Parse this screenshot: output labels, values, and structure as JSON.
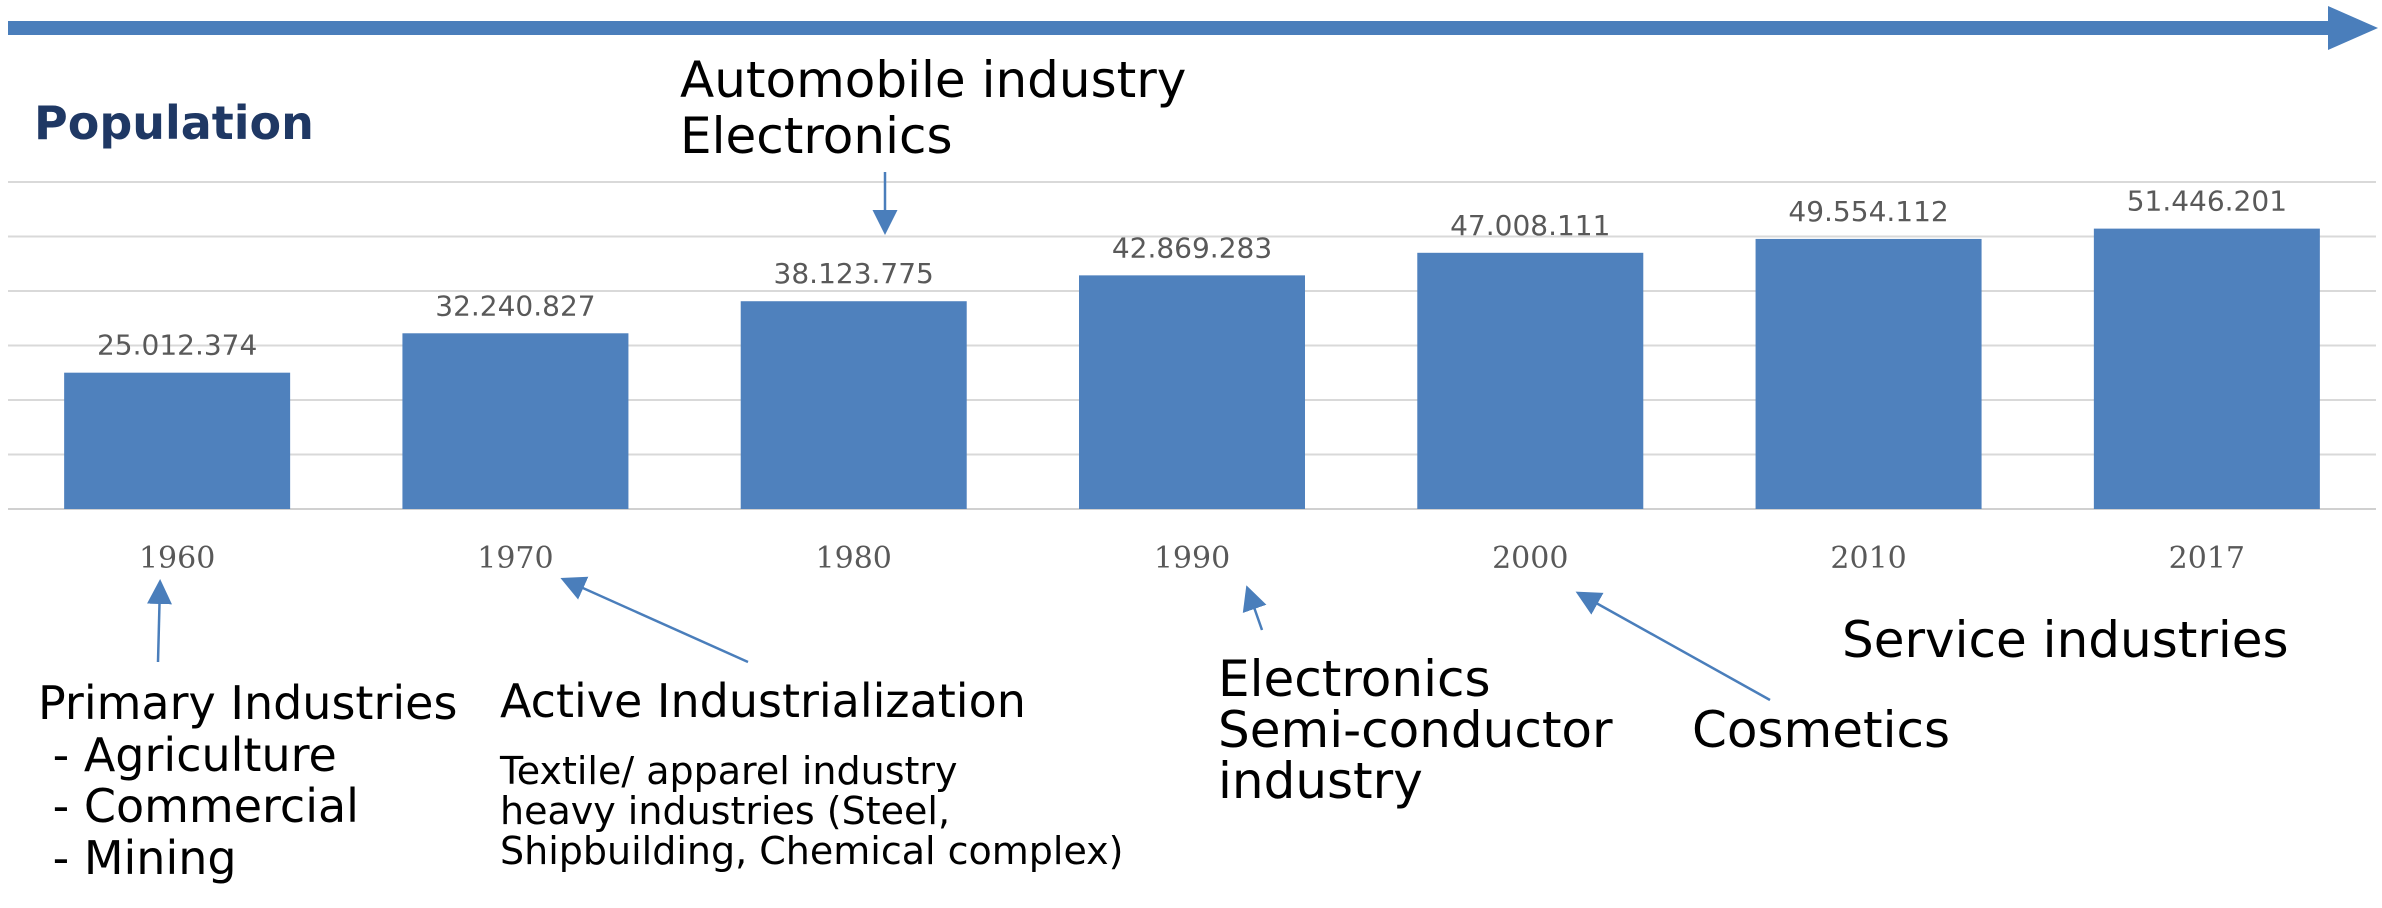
{
  "chart_data": {
    "type": "bar",
    "title": "Population",
    "categories": [
      "1960",
      "1970",
      "1980",
      "1990",
      "2000",
      "2010",
      "2017"
    ],
    "values": [
      25012374,
      32240827,
      38123775,
      42869283,
      47008111,
      49554112,
      51446201
    ],
    "data_labels": [
      "25.012.374",
      "32.240.827",
      "38.123.775",
      "42.869.283",
      "47.008.111",
      "49.554.112",
      "51.446.201"
    ],
    "ylim": [
      0,
      60000000
    ],
    "grid": true,
    "legend": "none",
    "bar_color": "#4f81bd",
    "axis_text_color": "#595959",
    "title_color": "#1f3864",
    "arrow_color": "#4a7ebb"
  },
  "annotations": {
    "automobile": [
      "Automobile industry",
      "Electronics"
    ],
    "primary": {
      "heading": "Primary Industries",
      "items": [
        " - Agriculture",
        " - Commercial",
        " - Mining"
      ]
    },
    "active": {
      "heading": "Active Industrialization",
      "details": [
        "Textile/ apparel industry",
        "heavy industries (Steel,",
        "Shipbuilding, Chemical complex)"
      ]
    },
    "electronics": [
      "Electronics",
      "Semi-conductor",
      "industry"
    ],
    "cosmetics": "Cosmetics",
    "service": "Service industries"
  }
}
